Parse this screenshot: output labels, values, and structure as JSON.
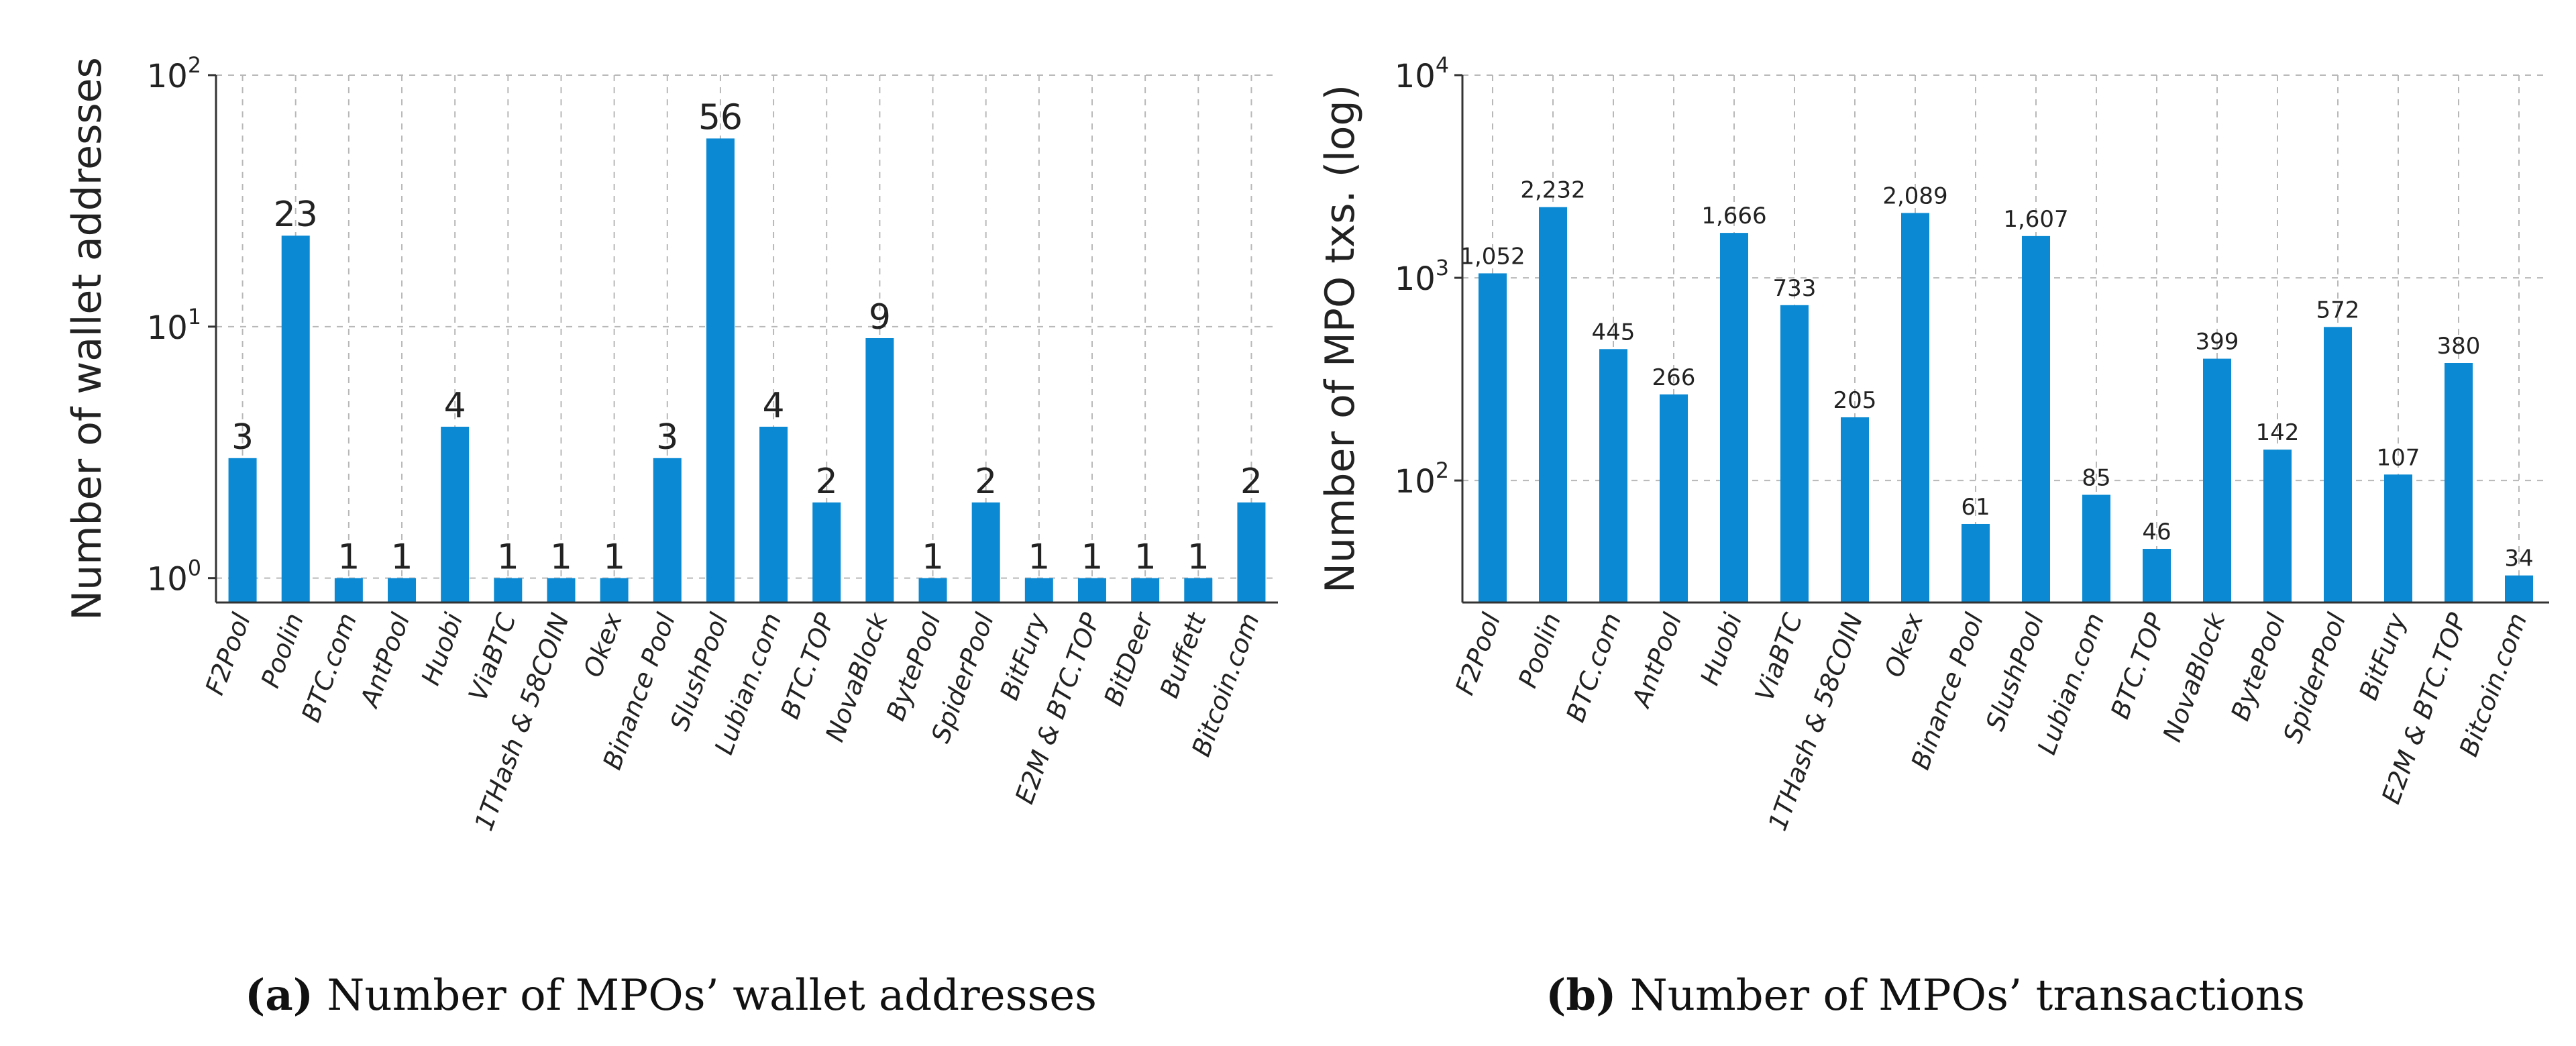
{
  "charts": {
    "a": {
      "caption_label": "(a)",
      "caption_text": " Number of MPOs’ wallet addresses"
    },
    "b": {
      "caption_label": "(b)",
      "caption_text": " Number of MPOs’ transactions"
    }
  },
  "chart_data": [
    {
      "id": "a",
      "type": "bar",
      "ylabel": "Number of wallet addresses",
      "yscale": "log",
      "ylim": [
        0.8,
        100
      ],
      "yticks": [
        {
          "base": "10",
          "exp": "0",
          "value": 1
        },
        {
          "base": "10",
          "exp": "1",
          "value": 10
        },
        {
          "base": "10",
          "exp": "2",
          "value": 100
        }
      ],
      "grid": true,
      "color": "#0b8ad3",
      "categories": [
        "F2Pool",
        "Poolin",
        "BTC.com",
        "AntPool",
        "Huobi",
        "ViaBTC",
        "1THash & 58COIN",
        "Okex",
        "Binance Pool",
        "SlushPool",
        "Lubian.com",
        "BTC.TOP",
        "NovaBlock",
        "BytePool",
        "SpiderPool",
        "BitFury",
        "E2M & BTC.TOP",
        "BitDeer",
        "Buffett",
        "Bitcoin.com"
      ],
      "values": [
        3,
        23,
        1,
        1,
        4,
        1,
        1,
        1,
        3,
        56,
        4,
        2,
        9,
        1,
        2,
        1,
        1,
        1,
        1,
        2
      ],
      "data_labels": [
        "3",
        "23",
        "1",
        "1",
        "4",
        "1",
        "1",
        "1",
        "3",
        "56",
        "4",
        "2",
        "9",
        "1",
        "2",
        "1",
        "1",
        "1",
        "1",
        "2"
      ]
    },
    {
      "id": "b",
      "type": "bar",
      "ylabel": "Number of MPO txs. (log)",
      "yscale": "log",
      "ylim": [
        25,
        10000
      ],
      "yticks": [
        {
          "base": "10",
          "exp": "2",
          "value": 100
        },
        {
          "base": "10",
          "exp": "3",
          "value": 1000
        },
        {
          "base": "10",
          "exp": "4",
          "value": 10000
        }
      ],
      "grid": true,
      "color": "#0b8ad3",
      "categories": [
        "F2Pool",
        "Poolin",
        "BTC.com",
        "AntPool",
        "Huobi",
        "ViaBTC",
        "1THash & 58COIN",
        "Okex",
        "Binance Pool",
        "SlushPool",
        "Lubian.com",
        "BTC.TOP",
        "NovaBlock",
        "BytePool",
        "SpiderPool",
        "BitFury",
        "E2M & BTC.TOP",
        "Bitcoin.com"
      ],
      "values": [
        1052,
        2232,
        445,
        266,
        1666,
        733,
        205,
        2089,
        61,
        1607,
        85,
        46,
        399,
        142,
        572,
        107,
        380,
        34
      ],
      "data_labels": [
        "1,052",
        "2,232",
        "445",
        "266",
        "1,666",
        "733",
        "205",
        "2,089",
        "61",
        "1,607",
        "85",
        "46",
        "399",
        "142",
        "572",
        "107",
        "380",
        "34"
      ]
    }
  ]
}
